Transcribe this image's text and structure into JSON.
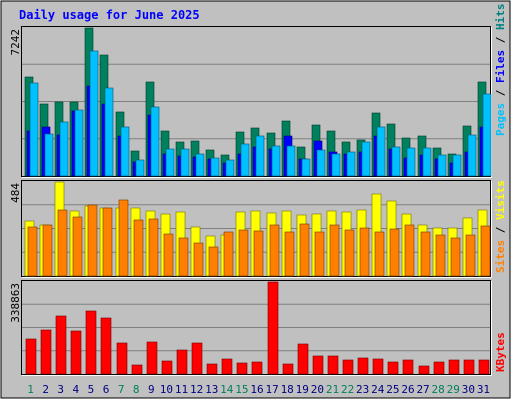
{
  "chart_data": {
    "type": "bar",
    "title": "Daily usage for June 2025",
    "days": [
      "1",
      "2",
      "3",
      "4",
      "5",
      "6",
      "7",
      "8",
      "9",
      "10",
      "11",
      "12",
      "13",
      "14",
      "15",
      "16",
      "17",
      "18",
      "19",
      "20",
      "21",
      "22",
      "23",
      "24",
      "25",
      "26",
      "27",
      "28",
      "29",
      "30",
      "31"
    ],
    "weekend_days": [
      1,
      7,
      8,
      14,
      15,
      21,
      22,
      28,
      29
    ],
    "panels": [
      {
        "key": "hits_files_pages",
        "axis_max_label": "7242",
        "ylim": [
          0,
          7242
        ],
        "side_labels": [
          "Pages",
          "Files",
          "Hits"
        ],
        "side_colors": [
          "#00c0ff",
          "#0000ff",
          "#008080"
        ],
        "series": [
          {
            "name": "Hits",
            "color": "#00805c",
            "values": [
              4850,
              3500,
              3600,
              3600,
              7242,
              5900,
              3150,
              1200,
              4600,
              2200,
              1650,
              1700,
              1250,
              1050,
              2150,
              2350,
              2100,
              2700,
              1400,
              2500,
              2200,
              1650,
              1750,
              3100,
              2550,
              1850,
              1950,
              1350,
              1100,
              2450,
              4600
            ]
          },
          {
            "name": "Files",
            "color": "#0000ff",
            "values": [
              2200,
              2400,
              2000,
              3200,
              4400,
              3500,
              1950,
              700,
              3000,
              1100,
              1000,
              950,
              850,
              650,
              1100,
              1400,
              1300,
              1950,
              850,
              1700,
              1150,
              1100,
              1150,
              1950,
              1300,
              900,
              1050,
              850,
              650,
              1150,
              2400
            ]
          },
          {
            "name": "Pages",
            "color": "#00c0ff",
            "values": [
              4550,
              2050,
              2650,
              3250,
              6100,
              4300,
              2400,
              800,
              3400,
              1300,
              1300,
              1100,
              900,
              800,
              1550,
              1950,
              1450,
              1450,
              850,
              1250,
              1100,
              1150,
              1650,
              2400,
              1400,
              1350,
              1350,
              1050,
              1050,
              2000,
              4000
            ]
          }
        ]
      },
      {
        "key": "visits_sites",
        "axis_max_label": "484",
        "ylim": [
          0,
          484
        ],
        "side_labels": [
          "Sites",
          "Visits"
        ],
        "side_colors": [
          "#ff8000",
          "#ffff00"
        ],
        "series": [
          {
            "name": "Visits",
            "color": "#ffff00",
            "values": [
              282,
              262,
              484,
              336,
              362,
              350,
              352,
              350,
              336,
              320,
              328,
              250,
              204,
              212,
              328,
              336,
              322,
              336,
              312,
              318,
              337,
              332,
              342,
              420,
              385,
              320,
              265,
              246,
              245,
              298,
              342
            ]
          },
          {
            "name": "Sites",
            "color": "#ff8000",
            "values": [
              252,
              262,
              342,
              306,
              367,
              349,
              392,
              287,
              295,
              216,
              196,
              168,
              147,
              227,
              238,
              230,
              262,
              226,
              270,
              227,
              264,
              236,
              247,
              224,
              244,
              262,
              224,
              210,
              197,
              210,
              256
            ]
          }
        ]
      },
      {
        "key": "kbytes",
        "axis_max_label": "338863",
        "ylim": [
          0,
          338863
        ],
        "side_labels": [
          "KBytes"
        ],
        "side_colors": [
          "#ff0000"
        ],
        "series": [
          {
            "name": "KBytes",
            "color": "#ff0000",
            "values": [
              130000,
              163000,
              215000,
              157000,
              231000,
              205000,
              116000,
              34000,
              117000,
              47000,
              90000,
              113000,
              37000,
              54000,
              40000,
              44000,
              338863,
              36000,
              109000,
              68000,
              65000,
              53000,
              60000,
              54000,
              46000,
              52000,
              29000,
              45000,
              53000,
              51000,
              50000
            ]
          }
        ]
      }
    ]
  },
  "colors": {
    "background": "#c0c0c0",
    "frame": "#ffffff",
    "title": "#0000ff",
    "gridline": "#808080",
    "weekday_label": "#000080",
    "weekend_label": "#00805c"
  }
}
